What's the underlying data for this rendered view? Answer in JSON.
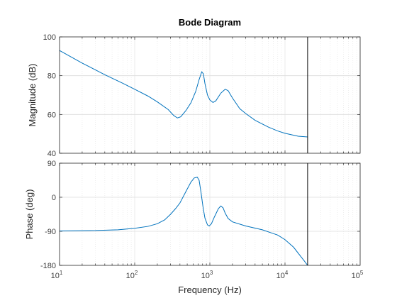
{
  "chart_data": {
    "type": "line",
    "title": "Bode Diagram",
    "xlabel": "Frequency  (Hz)",
    "x_scale": "log",
    "xlim": [
      10,
      100000
    ],
    "x_ticks": [
      {
        "base": "10",
        "exp": "1"
      },
      {
        "base": "10",
        "exp": "2"
      },
      {
        "base": "10",
        "exp": "3"
      },
      {
        "base": "10",
        "exp": "4"
      },
      {
        "base": "10",
        "exp": "5"
      }
    ],
    "grid": true,
    "nyquist_line_hz": 20000,
    "color": "#0072BD",
    "panels": [
      {
        "name": "magnitude",
        "ylabel": "Magnitude (dB)",
        "ylim": [
          40,
          100
        ],
        "yticks": [
          40,
          60,
          80,
          100
        ],
        "points": [
          [
            10,
            93
          ],
          [
            20,
            86.5
          ],
          [
            40,
            80.5
          ],
          [
            70,
            76
          ],
          [
            100,
            73
          ],
          [
            150,
            69.5
          ],
          [
            200,
            66.5
          ],
          [
            280,
            62.5
          ],
          [
            330,
            59.5
          ],
          [
            370,
            58.2
          ],
          [
            410,
            58.8
          ],
          [
            480,
            62
          ],
          [
            560,
            66
          ],
          [
            650,
            72
          ],
          [
            720,
            78
          ],
          [
            780,
            82
          ],
          [
            820,
            81
          ],
          [
            860,
            76
          ],
          [
            930,
            70
          ],
          [
            1000,
            67.5
          ],
          [
            1100,
            66.2
          ],
          [
            1200,
            67
          ],
          [
            1400,
            71
          ],
          [
            1600,
            73
          ],
          [
            1750,
            72.3
          ],
          [
            2000,
            68.5
          ],
          [
            2500,
            63
          ],
          [
            3000,
            60.5
          ],
          [
            4000,
            57
          ],
          [
            6000,
            53.5
          ],
          [
            8000,
            51.5
          ],
          [
            10000,
            50.3
          ],
          [
            15000,
            48.8
          ],
          [
            20000,
            48.4
          ]
        ]
      },
      {
        "name": "phase",
        "ylabel": "Phase (deg)",
        "ylim": [
          -180,
          90
        ],
        "yticks": [
          -180,
          -90,
          0,
          90
        ],
        "points": [
          [
            10,
            -89
          ],
          [
            30,
            -88
          ],
          [
            60,
            -86
          ],
          [
            100,
            -82
          ],
          [
            150,
            -77
          ],
          [
            200,
            -70
          ],
          [
            250,
            -60
          ],
          [
            300,
            -45
          ],
          [
            350,
            -30
          ],
          [
            400,
            -15
          ],
          [
            480,
            15
          ],
          [
            560,
            40
          ],
          [
            620,
            51
          ],
          [
            680,
            53
          ],
          [
            720,
            45
          ],
          [
            760,
            15
          ],
          [
            810,
            -25
          ],
          [
            860,
            -55
          ],
          [
            930,
            -73
          ],
          [
            980,
            -76
          ],
          [
            1050,
            -70
          ],
          [
            1150,
            -52
          ],
          [
            1300,
            -30
          ],
          [
            1400,
            -23
          ],
          [
            1500,
            -28
          ],
          [
            1600,
            -42
          ],
          [
            1750,
            -56
          ],
          [
            2000,
            -65
          ],
          [
            3000,
            -76
          ],
          [
            5000,
            -86
          ],
          [
            8000,
            -100
          ],
          [
            10000,
            -112
          ],
          [
            13000,
            -132
          ],
          [
            16000,
            -155
          ],
          [
            18000,
            -168
          ],
          [
            20000,
            -180
          ]
        ]
      }
    ]
  }
}
